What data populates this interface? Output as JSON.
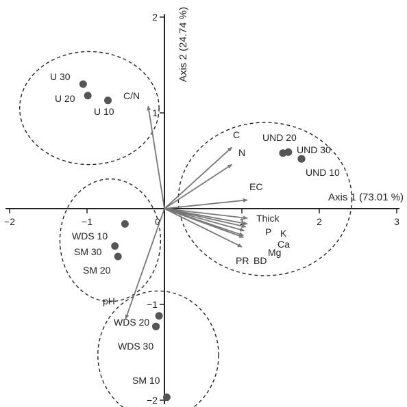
{
  "chart_data": {
    "type": "scatter",
    "title": "",
    "x_axis": {
      "label": "Axis 1 (73.01 %)",
      "range": [
        -2,
        3
      ],
      "ticks": [
        -2,
        -1,
        0,
        1,
        2,
        3
      ]
    },
    "y_axis": {
      "label": "Axis 2 (24.74 %)",
      "range": [
        -2,
        2
      ],
      "ticks": [
        -2,
        -1,
        0,
        1,
        2
      ]
    },
    "grid": false,
    "points": [
      {
        "label": "U 30",
        "x": -1.05,
        "y": 1.3
      },
      {
        "label": "U 20",
        "x": -0.99,
        "y": 1.18
      },
      {
        "label": "U 10",
        "x": -0.73,
        "y": 1.13
      },
      {
        "label": "UND 20",
        "x": 1.53,
        "y": 0.58
      },
      {
        "label": "",
        "x": 1.6,
        "y": 0.59
      },
      {
        "label": "UND 30",
        "x": 1.77,
        "y": 0.52
      },
      {
        "label": "UND 10",
        "x": 1.77,
        "y": 0.52
      },
      {
        "label": "WDS 10",
        "x": -0.51,
        "y": -0.16
      },
      {
        "label": "SM 30",
        "x": -0.64,
        "y": -0.39
      },
      {
        "label": "SM 20",
        "x": -0.6,
        "y": -0.5
      },
      {
        "label": "",
        "x": -0.07,
        "y": -1.12
      },
      {
        "label": "WDS 20",
        "x": -0.11,
        "y": -1.23
      },
      {
        "label": "WDS 30",
        "x": -0.11,
        "y": -1.23
      },
      {
        "label": "SM 10",
        "x": 0.03,
        "y": -1.97
      }
    ],
    "vectors": [
      {
        "label": "C/N",
        "x": -0.21,
        "y": 1.07
      },
      {
        "label": "C",
        "x": 0.87,
        "y": 0.64
      },
      {
        "label": "N",
        "x": 0.87,
        "y": 0.46
      },
      {
        "label": "EC",
        "x": 1.07,
        "y": 0.09
      },
      {
        "label": "Thick",
        "x": 1.07,
        "y": -0.1
      },
      {
        "label": "P",
        "x": 1.07,
        "y": -0.16
      },
      {
        "label": "K",
        "x": 1.05,
        "y": -0.19
      },
      {
        "label": "Ca",
        "x": 1.03,
        "y": -0.23
      },
      {
        "label": "Mg",
        "x": 1.02,
        "y": -0.28
      },
      {
        "label": "BD",
        "x": 1.02,
        "y": -0.3
      },
      {
        "label": "PR",
        "x": 1.0,
        "y": -0.4
      },
      {
        "label": "pH",
        "x": -0.5,
        "y": -1.15
      }
    ],
    "groups": [
      {
        "name": "",
        "cx": -0.97,
        "cy": 1.05,
        "rx": 0.9,
        "ry": 0.59
      },
      {
        "name": "",
        "cx": 1.3,
        "cy": 0.1,
        "rx": 1.12,
        "ry": 0.8
      },
      {
        "name": "",
        "cx": -0.7,
        "cy": -0.33,
        "rx": 0.65,
        "ry": 0.64
      },
      {
        "name": "",
        "cx": -0.08,
        "cy": -1.53,
        "rx": 0.78,
        "ry": 0.67
      }
    ]
  }
}
